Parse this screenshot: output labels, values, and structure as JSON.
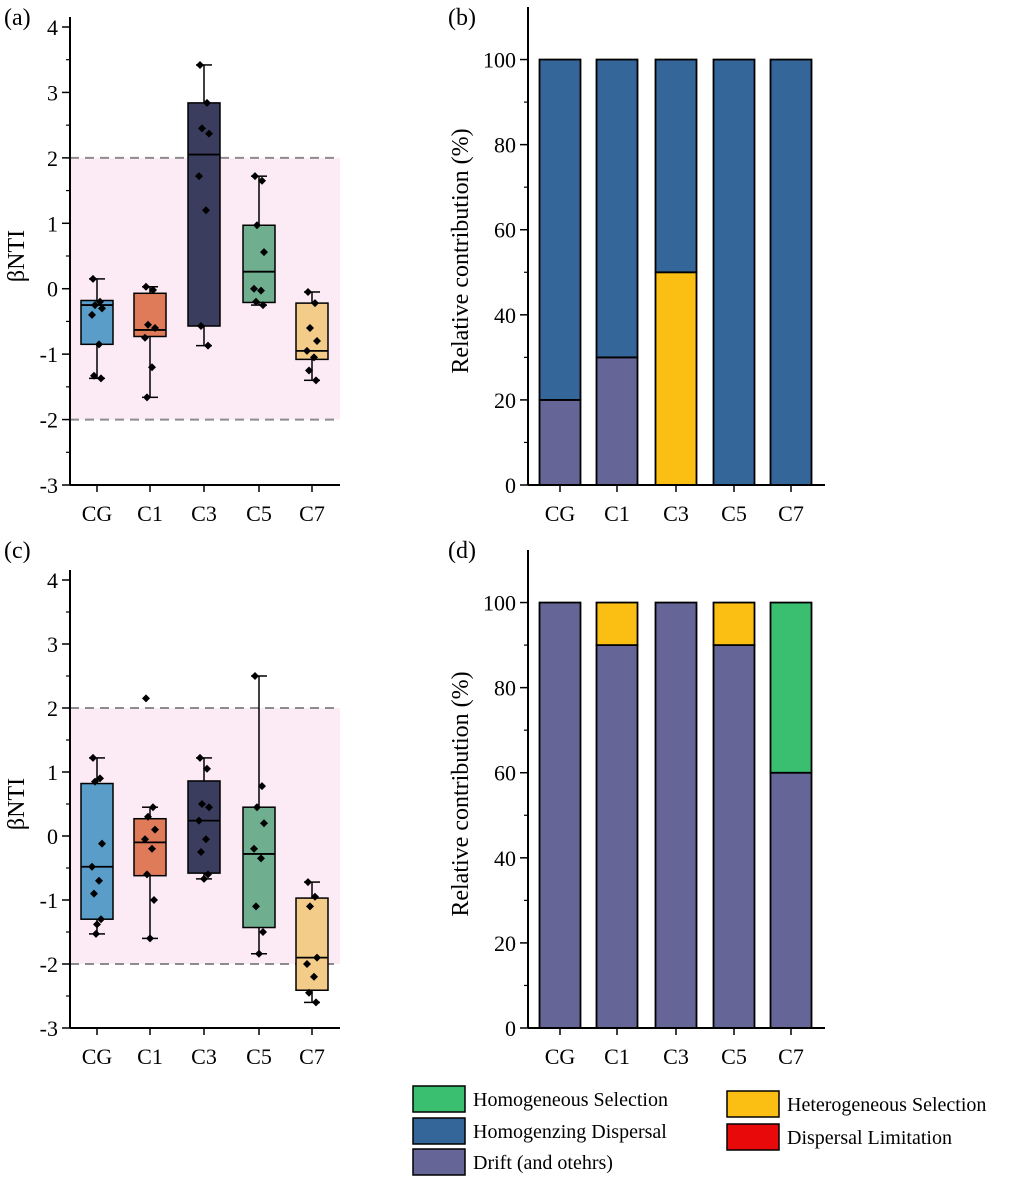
{
  "colors": {
    "CG": "#5B9DC9",
    "C1": "#E07B5A",
    "C3": "#3A3D5E",
    "C5": "#6FAE8E",
    "C7": "#F3CC8A",
    "band": "#FCEAF5",
    "dash": "#8C8C8C",
    "homogeneous_selection": "#39BF6F",
    "heterogeneous_selection": "#FBBF14",
    "homogenizing_dispersal": "#356699",
    "dispersal_limitation": "#E80A0A",
    "drift": "#656597"
  },
  "chart_data": [
    {
      "panel": "(a)",
      "type": "box",
      "ylabel": "βNTI",
      "ylim": [
        -3,
        4
      ],
      "yticks": [
        "-3",
        "-2",
        "-1",
        "0",
        "1",
        "2",
        "3",
        "4"
      ],
      "threshold_lines": [
        -2,
        2
      ],
      "categories": [
        "CG",
        "C1",
        "C3",
        "C5",
        "C7"
      ],
      "boxes": [
        {
          "q1": -0.85,
          "median": -0.25,
          "q3": -0.18,
          "whisker_low": -1.37,
          "whisker_high": 0.15,
          "points": [
            0.15,
            -0.2,
            -0.25,
            -0.3,
            -0.4,
            -0.85,
            -1.33,
            -1.37
          ]
        },
        {
          "q1": -0.73,
          "median": -0.63,
          "q3": -0.07,
          "whisker_low": -1.66,
          "whisker_high": 0.03,
          "points": [
            0.03,
            -0.02,
            -0.55,
            -0.6,
            -0.75,
            -1.2,
            -1.66
          ]
        },
        {
          "q1": -0.57,
          "median": 2.05,
          "q3": 2.84,
          "whisker_low": -0.87,
          "whisker_high": 3.42,
          "points": [
            3.42,
            2.84,
            2.45,
            2.37,
            1.72,
            1.2,
            -0.57,
            -0.87
          ]
        },
        {
          "q1": -0.21,
          "median": 0.26,
          "q3": 0.97,
          "whisker_low": -0.25,
          "whisker_high": 1.72,
          "points": [
            1.72,
            1.65,
            0.97,
            0.56,
            0.0,
            -0.03,
            -0.2,
            -0.25
          ]
        },
        {
          "q1": -1.08,
          "median": -0.95,
          "q3": -0.22,
          "whisker_low": -1.4,
          "whisker_high": -0.05,
          "points": [
            -0.05,
            -0.22,
            -0.6,
            -0.8,
            -0.95,
            -1.05,
            -1.25,
            -1.4
          ]
        }
      ]
    },
    {
      "panel": "(b)",
      "type": "bar",
      "stacked": true,
      "ylabel": "Relative contribution (%)",
      "ylim": [
        0,
        110
      ],
      "yticks": [
        "0",
        "20",
        "40",
        "60",
        "80",
        "100"
      ],
      "categories": [
        "CG",
        "C1",
        "C3",
        "C5",
        "C7"
      ],
      "series": [
        {
          "key": "drift",
          "values": [
            20,
            30,
            0,
            0,
            0
          ]
        },
        {
          "key": "heterogeneous_selection",
          "values": [
            0,
            0,
            50,
            0,
            0
          ]
        },
        {
          "key": "homogenizing_dispersal",
          "values": [
            80,
            70,
            50,
            100,
            100
          ]
        }
      ]
    },
    {
      "panel": "(c)",
      "type": "box",
      "ylabel": "βNTI",
      "ylim": [
        -3,
        4
      ],
      "yticks": [
        "-3",
        "-2",
        "-1",
        "0",
        "1",
        "2",
        "3",
        "4"
      ],
      "threshold_lines": [
        -2,
        2
      ],
      "categories": [
        "CG",
        "C1",
        "C3",
        "C5",
        "C7"
      ],
      "boxes": [
        {
          "q1": -1.3,
          "median": -0.48,
          "q3": 0.82,
          "whisker_low": -1.53,
          "whisker_high": 1.22,
          "points": [
            1.22,
            0.9,
            0.85,
            -0.12,
            -0.48,
            -0.7,
            -0.9,
            -1.3,
            -1.38,
            -1.53
          ]
        },
        {
          "q1": -0.62,
          "median": -0.1,
          "q3": 0.27,
          "whisker_low": -1.6,
          "whisker_high": 0.45,
          "points": [
            2.15,
            0.45,
            0.3,
            0.1,
            -0.05,
            -0.2,
            -0.6,
            -1.0,
            -1.6
          ]
        },
        {
          "q1": -0.58,
          "median": 0.24,
          "q3": 0.86,
          "whisker_low": -0.67,
          "whisker_high": 1.22,
          "points": [
            1.22,
            1.05,
            0.5,
            0.45,
            0.24,
            -0.05,
            -0.25,
            -0.6,
            -0.67
          ]
        },
        {
          "q1": -1.43,
          "median": -0.28,
          "q3": 0.45,
          "whisker_low": -1.84,
          "whisker_high": 2.5,
          "points": [
            2.5,
            0.78,
            0.45,
            0.2,
            -0.2,
            -0.35,
            -1.1,
            -1.5,
            -1.84
          ]
        },
        {
          "q1": -2.41,
          "median": -1.9,
          "q3": -0.97,
          "whisker_low": -2.6,
          "whisker_high": -0.72,
          "points": [
            -0.72,
            -0.95,
            -1.1,
            -1.9,
            -2.0,
            -2.2,
            -2.45,
            -2.6
          ]
        }
      ]
    },
    {
      "panel": "(d)",
      "type": "bar",
      "stacked": true,
      "ylabel": "Relative contribution (%)",
      "ylim": [
        0,
        110
      ],
      "yticks": [
        "0",
        "20",
        "40",
        "60",
        "80",
        "100"
      ],
      "categories": [
        "CG",
        "C1",
        "C3",
        "C5",
        "C7"
      ],
      "series": [
        {
          "key": "drift",
          "values": [
            100,
            90,
            100,
            90,
            60
          ]
        },
        {
          "key": "heterogeneous_selection",
          "values": [
            0,
            10,
            0,
            10,
            0
          ]
        },
        {
          "key": "homogeneous_selection",
          "values": [
            0,
            0,
            0,
            0,
            40
          ]
        }
      ]
    }
  ],
  "legend": [
    {
      "key": "homogeneous_selection",
      "label": "Homogeneous Selection"
    },
    {
      "key": "heterogeneous_selection",
      "label": "Heterogeneous Selection"
    },
    {
      "key": "homogenizing_dispersal",
      "label": "Homogenzing Dispersal"
    },
    {
      "key": "dispersal_limitation",
      "label": "Dispersal Limitation"
    },
    {
      "key": "drift",
      "label": "Drift (and otehrs)"
    }
  ]
}
